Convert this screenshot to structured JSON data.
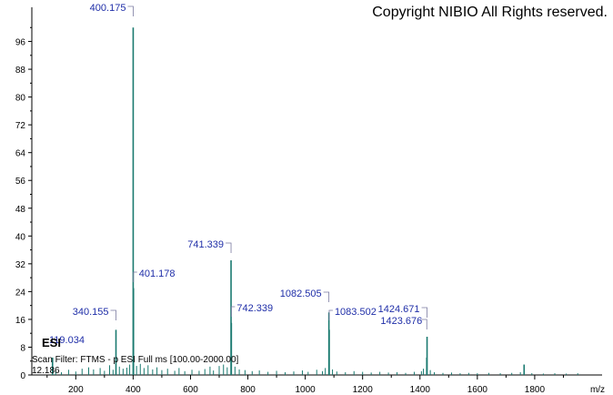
{
  "copyright": "Copyright NIBIO All Rights reserved.",
  "esi_label": "ESI",
  "scan_filter": "Scan Filter: FTMS - p ESI Full ms [100.00-2000.00]",
  "retention_time": "12.186",
  "colors": {
    "peak": "#1a7a70",
    "label": "#1f2ea8",
    "axis": "#000000",
    "leader": "#7a7aa0"
  },
  "chart_data": {
    "type": "bar",
    "title": "",
    "xlabel": "m/z",
    "ylabel": "",
    "xlim": [
      50,
      2000
    ],
    "ylim": [
      0,
      104
    ],
    "grid": false,
    "x_ticks": [
      200,
      400,
      600,
      800,
      1000,
      1200,
      1400,
      1600,
      1800
    ],
    "y_ticks": [
      0,
      8,
      16,
      24,
      32,
      40,
      48,
      56,
      64,
      72,
      80,
      88,
      96
    ],
    "peaks": [
      {
        "mz": 119.034,
        "intensity": 5,
        "label": "119.034"
      },
      {
        "mz": 340.155,
        "intensity": 13,
        "label": "340.155"
      },
      {
        "mz": 400.175,
        "intensity": 100,
        "label": "400.175"
      },
      {
        "mz": 401.178,
        "intensity": 25,
        "label": "401.178"
      },
      {
        "mz": 741.339,
        "intensity": 33,
        "label": "741.339"
      },
      {
        "mz": 742.339,
        "intensity": 15,
        "label": "742.339"
      },
      {
        "mz": 1082.505,
        "intensity": 18,
        "label": "1082.505"
      },
      {
        "mz": 1083.502,
        "intensity": 13,
        "label": "1083.502"
      },
      {
        "mz": 1424.671,
        "intensity": 11,
        "label": "1424.671"
      },
      {
        "mz": 1423.676,
        "intensity": 5,
        "label": "1423.676"
      },
      {
        "mz": 1763,
        "intensity": 3
      }
    ],
    "noise": [
      [
        130,
        1.2
      ],
      [
        150,
        0.8
      ],
      [
        175,
        1.5
      ],
      [
        200,
        1.0
      ],
      [
        222,
        1.8
      ],
      [
        245,
        2.2
      ],
      [
        262,
        1.6
      ],
      [
        285,
        2.0
      ],
      [
        300,
        1.2
      ],
      [
        318,
        2.8
      ],
      [
        330,
        1.5
      ],
      [
        352,
        2.4
      ],
      [
        365,
        1.8
      ],
      [
        378,
        2.1
      ],
      [
        388,
        3.0
      ],
      [
        412,
        2.6
      ],
      [
        425,
        3.2
      ],
      [
        438,
        2.0
      ],
      [
        452,
        2.8
      ],
      [
        468,
        1.6
      ],
      [
        483,
        2.2
      ],
      [
        500,
        1.4
      ],
      [
        520,
        1.8
      ],
      [
        545,
        1.2
      ],
      [
        560,
        2.0
      ],
      [
        580,
        1.1
      ],
      [
        605,
        1.5
      ],
      [
        630,
        1.2
      ],
      [
        650,
        1.7
      ],
      [
        668,
        2.4
      ],
      [
        680,
        1.3
      ],
      [
        700,
        2.6
      ],
      [
        715,
        3.0
      ],
      [
        728,
        2.2
      ],
      [
        755,
        2.4
      ],
      [
        770,
        1.6
      ],
      [
        790,
        1.4
      ],
      [
        815,
        1.1
      ],
      [
        840,
        1.3
      ],
      [
        870,
        0.9
      ],
      [
        900,
        1.2
      ],
      [
        930,
        0.8
      ],
      [
        960,
        1.0
      ],
      [
        990,
        1.3
      ],
      [
        1010,
        0.9
      ],
      [
        1040,
        1.5
      ],
      [
        1060,
        1.1
      ],
      [
        1070,
        2.0
      ],
      [
        1095,
        1.6
      ],
      [
        1110,
        1.0
      ],
      [
        1140,
        0.8
      ],
      [
        1170,
        1.1
      ],
      [
        1200,
        0.9
      ],
      [
        1230,
        0.7
      ],
      [
        1260,
        0.9
      ],
      [
        1290,
        0.7
      ],
      [
        1320,
        0.8
      ],
      [
        1350,
        0.6
      ],
      [
        1380,
        0.9
      ],
      [
        1405,
        1.1
      ],
      [
        1412,
        1.8
      ],
      [
        1436,
        1.4
      ],
      [
        1450,
        0.8
      ],
      [
        1480,
        0.6
      ],
      [
        1510,
        0.7
      ],
      [
        1540,
        0.5
      ],
      [
        1570,
        0.6
      ],
      [
        1600,
        0.5
      ],
      [
        1640,
        0.6
      ],
      [
        1680,
        0.5
      ],
      [
        1720,
        0.6
      ],
      [
        1750,
        0.8
      ],
      [
        1790,
        0.5
      ],
      [
        1830,
        0.4
      ],
      [
        1870,
        0.5
      ],
      [
        1910,
        0.4
      ],
      [
        1950,
        0.5
      ]
    ]
  }
}
